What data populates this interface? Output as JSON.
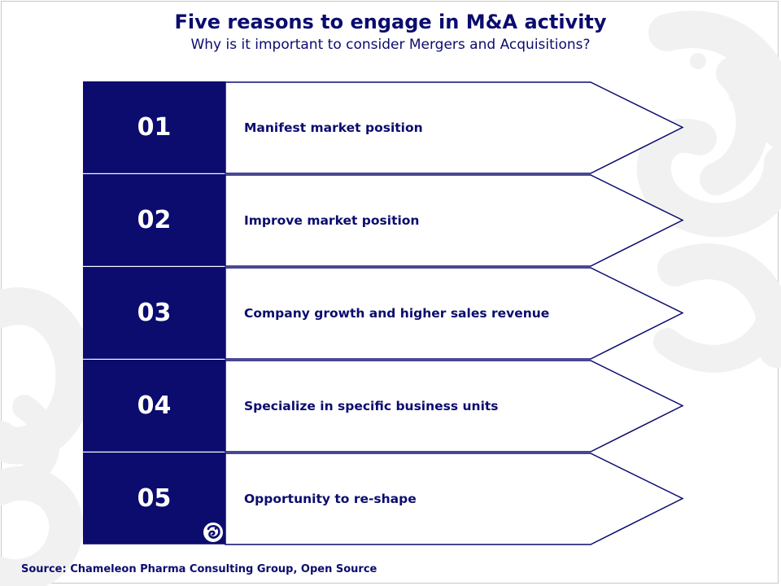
{
  "header": {
    "title": "Five reasons to engage in M&A activity",
    "subtitle": "Why is it important to consider Mergers and Acquisitions?"
  },
  "items": [
    {
      "number": "01",
      "label": "Manifest market position"
    },
    {
      "number": "02",
      "label": "Improve market position"
    },
    {
      "number": "03",
      "label": "Company growth and higher sales revenue"
    },
    {
      "number": "04",
      "label": "Specialize in specific business units"
    },
    {
      "number": "05",
      "label": "Opportunity to re-shape"
    }
  ],
  "footer": {
    "source": "Source:  Chameleon Pharma Consulting Group, Open Source"
  },
  "colors": {
    "navy": "#0b0c6e",
    "swirl": "#f2f2f2"
  },
  "icons": {
    "logo": "chameleon-logo-icon",
    "background": "chameleon-swirl-watermark"
  }
}
